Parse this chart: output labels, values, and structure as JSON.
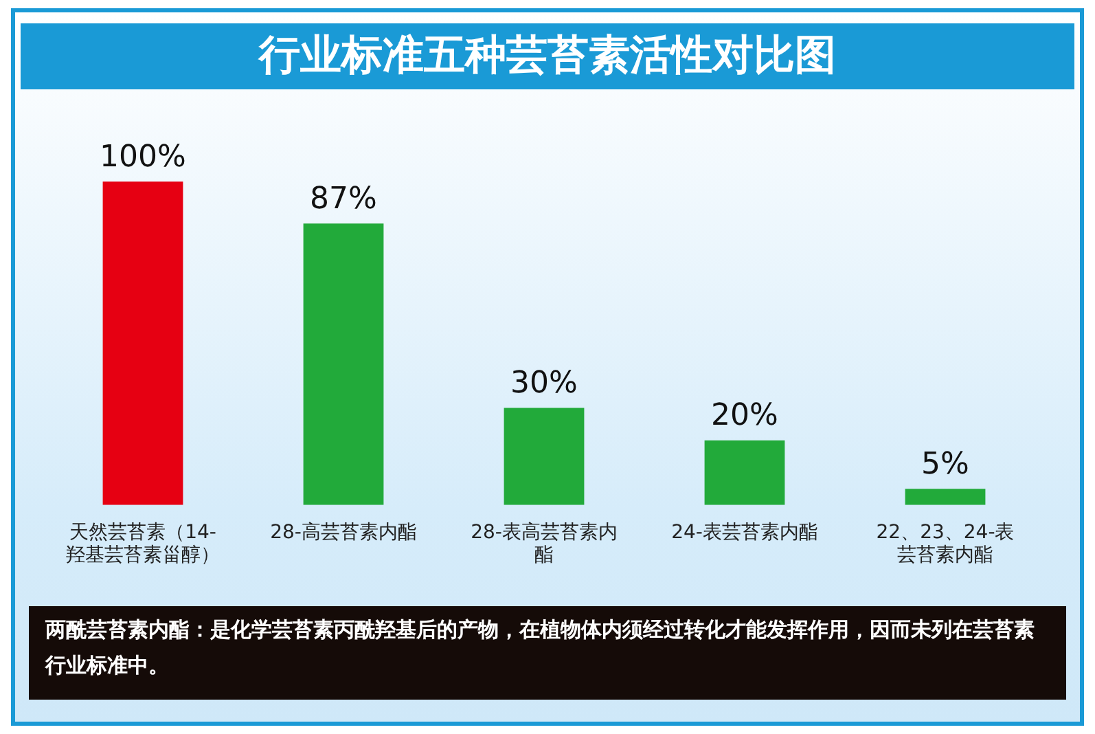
{
  "chart_data": {
    "type": "bar",
    "title": "行业标准五种芸苔素活性对比图",
    "categories": [
      "天然芸苔素（14-羟基芸苔素甾醇）",
      "28-高芸苔素内酯",
      "28-表高芸苔素内酯",
      "24-表芸苔素内酯",
      "22、23、24-表芸苔素内酯"
    ],
    "values": [
      100,
      87,
      30,
      20,
      5
    ],
    "value_labels": [
      "100%",
      "87%",
      "30%",
      "20%",
      "5%"
    ],
    "colors": [
      "#e60012",
      "#22aa3a",
      "#22aa3a",
      "#22aa3a",
      "#22aa3a"
    ],
    "annotations": [
      "两酰芸苔素内酯：是化学芸苔素丙酰羟基后的产物，在植物体内须经过转化才能发挥作用，因而未列在芸苔素行业标准中。"
    ],
    "grid": false,
    "legend": false
  }
}
